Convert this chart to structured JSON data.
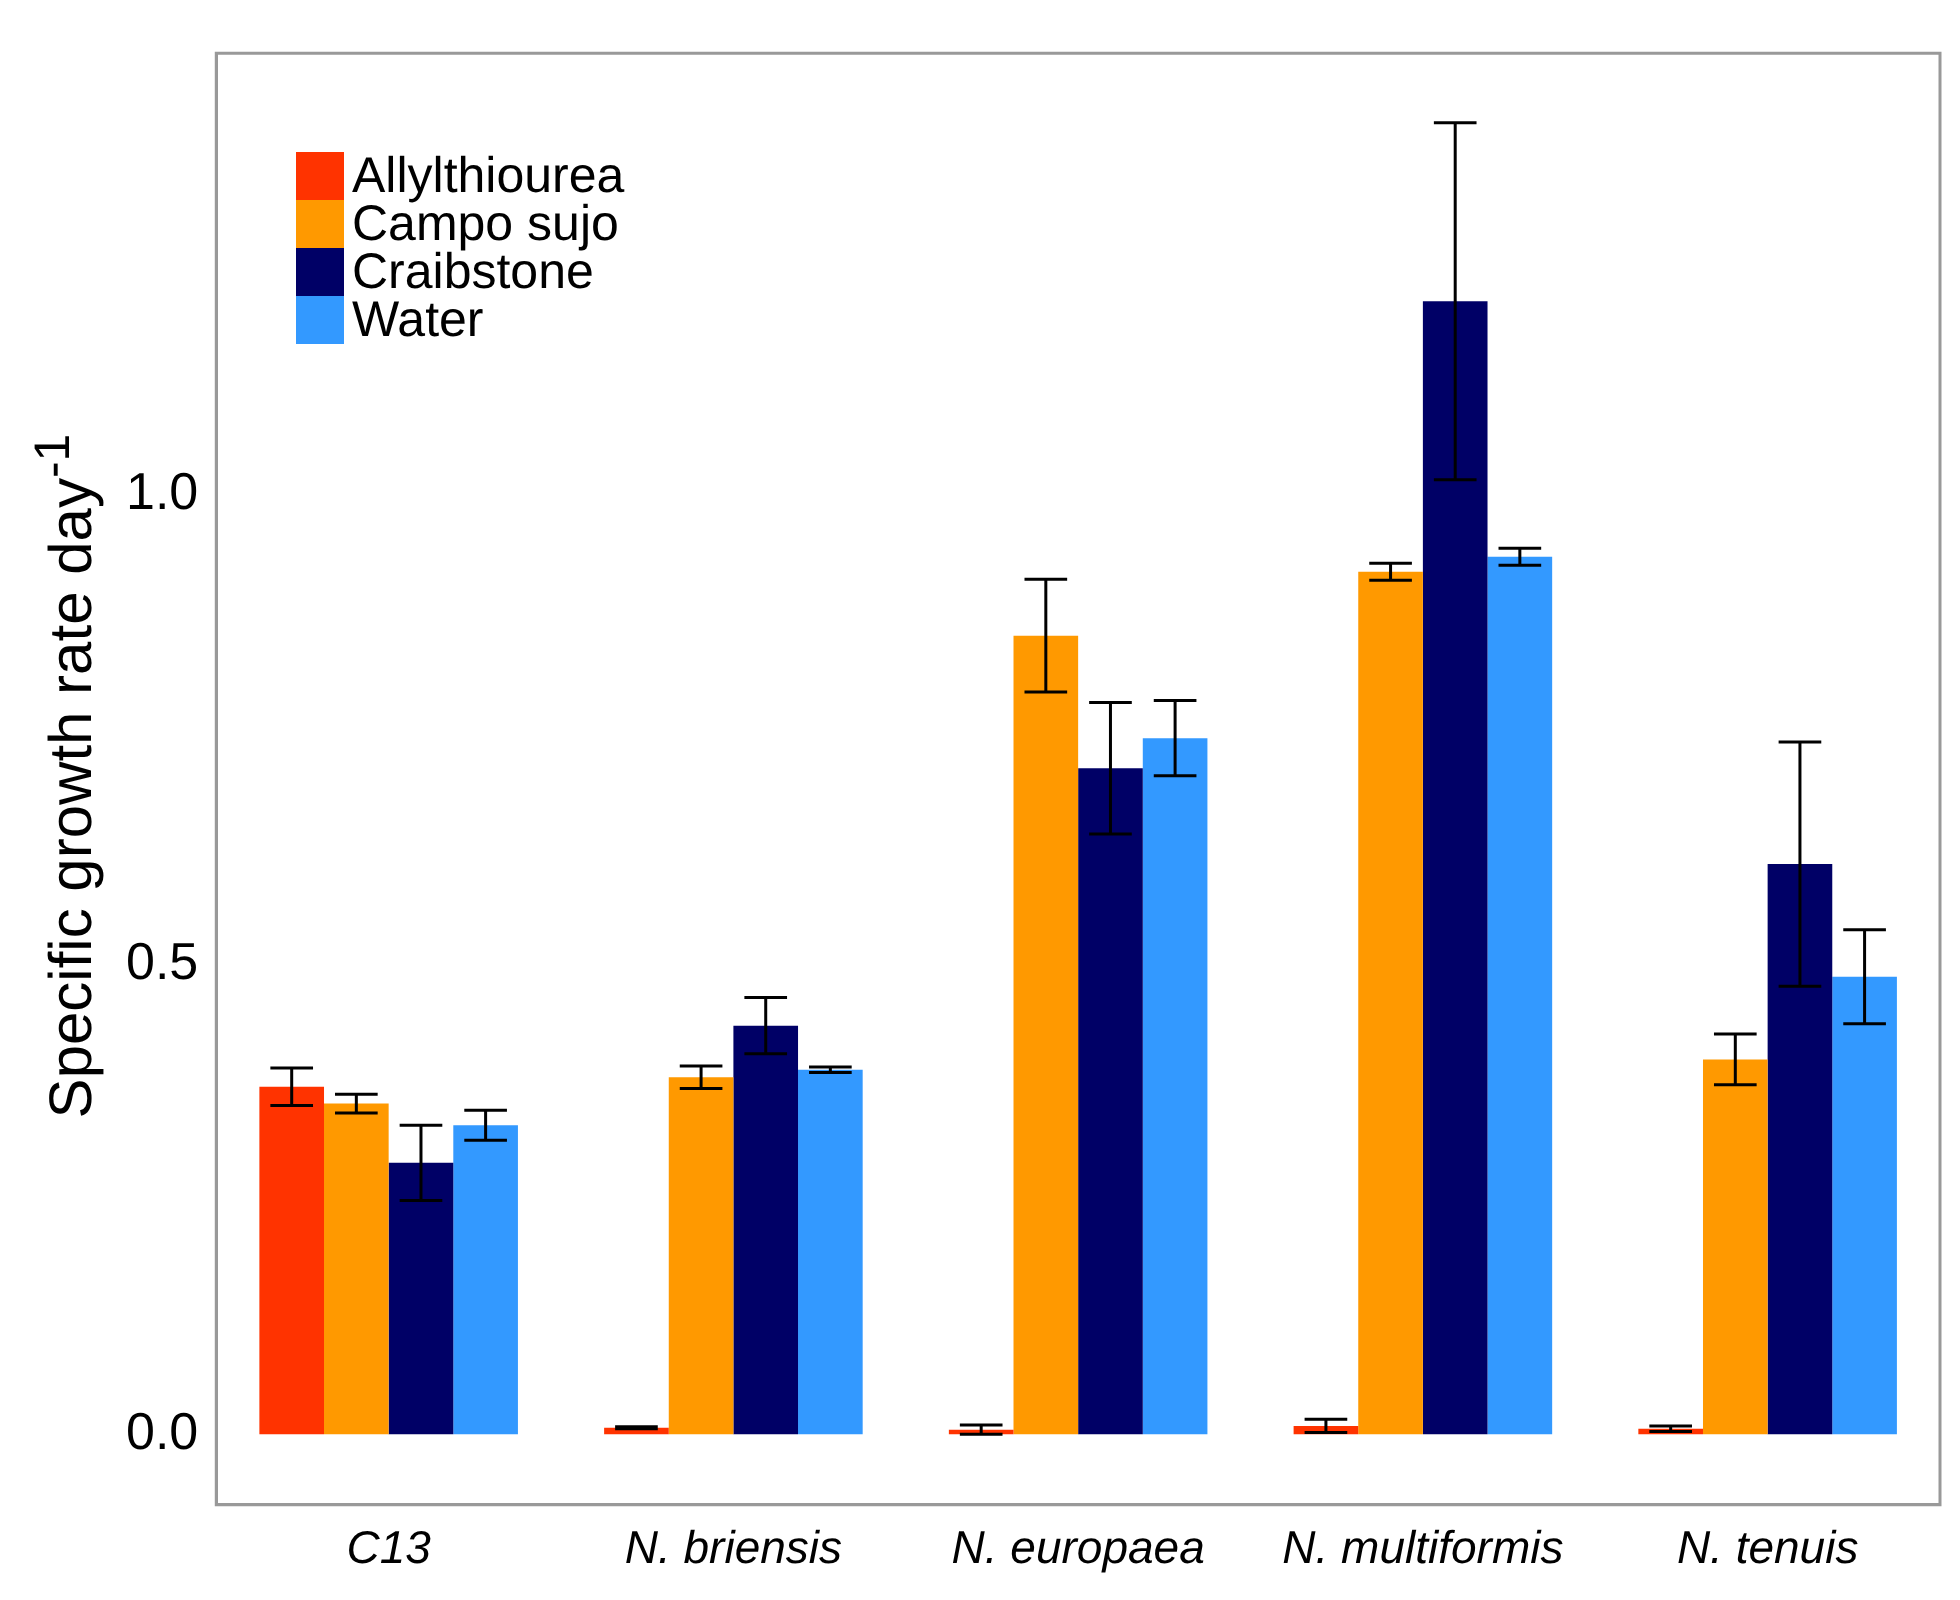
{
  "chart_data": {
    "type": "bar",
    "ylabel": "Specific growth rate  day$^{-1}$",
    "categories": [
      "C13",
      "N. briensis",
      "N. europaea",
      "N. multiformis",
      "N. tenuis"
    ],
    "series": [
      {
        "name": "Allylthiourea",
        "color": "#ff3300",
        "values": [
          0.37,
          0.007,
          0.005,
          0.009,
          0.006
        ],
        "errors": [
          0.02,
          0.001,
          0.005,
          0.007,
          0.003
        ]
      },
      {
        "name": "Campo sujo",
        "color": "#ff9900",
        "values": [
          0.352,
          0.38,
          0.85,
          0.918,
          0.399
        ],
        "errors": [
          0.01,
          0.012,
          0.06,
          0.009,
          0.027
        ]
      },
      {
        "name": "Craibstone",
        "color": "#000066",
        "values": [
          0.289,
          0.435,
          0.709,
          1.206,
          0.607
        ],
        "errors": [
          0.04,
          0.03,
          0.07,
          0.19,
          0.13
        ]
      },
      {
        "name": "Water",
        "color": "#3399ff",
        "values": [
          0.329,
          0.388,
          0.741,
          0.934,
          0.487
        ],
        "errors": [
          0.016,
          0.003,
          0.04,
          0.009,
          0.05
        ]
      }
    ],
    "ylim": [
      -0.075,
      1.47
    ],
    "yticks": [
      {
        "value": 0,
        "label": "0.0"
      },
      {
        "value": 0.5,
        "label": "0.5"
      },
      {
        "value": 1,
        "label": "1.0"
      }
    ],
    "grid": false,
    "legend": "top left"
  }
}
